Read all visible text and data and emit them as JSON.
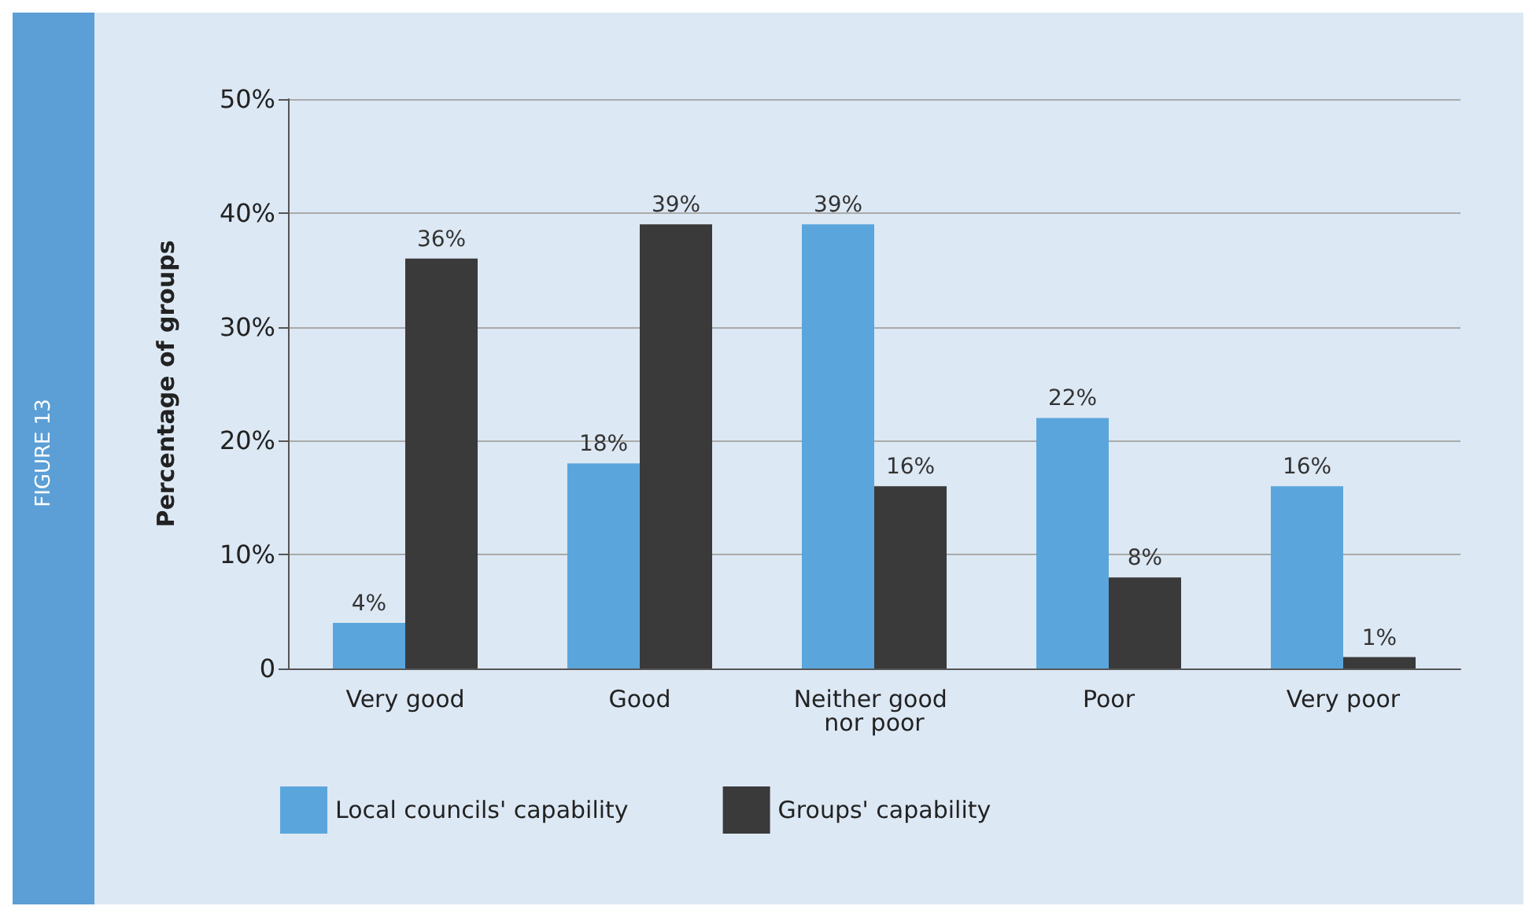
{
  "chart_data": {
    "type": "bar",
    "title": "FIGURE 13",
    "ylabel": "Percentage of groups",
    "categories": [
      "Very good",
      "Good",
      "Neither good nor poor",
      "Poor",
      "Very poor"
    ],
    "series": [
      {
        "name": "Local councils' capability",
        "color": "#5aa6dc",
        "values": [
          4,
          18,
          39,
          22,
          16
        ],
        "value_labels": [
          "4%",
          "18%",
          "39%",
          "22%",
          "16%"
        ]
      },
      {
        "name": "Groups' capability",
        "color": "#3a3a3a",
        "values": [
          36,
          39,
          16,
          8,
          1
        ],
        "value_labels": [
          "36%",
          "39%",
          "16%",
          "8%",
          "1%"
        ]
      }
    ],
    "ylim": [
      0,
      50
    ],
    "yticks": [
      {
        "value": 0,
        "label": "0"
      },
      {
        "value": 10,
        "label": "10%"
      },
      {
        "value": 20,
        "label": "20%"
      },
      {
        "value": 30,
        "label": "30%"
      },
      {
        "value": 40,
        "label": "40%"
      },
      {
        "value": 50,
        "label": "50%"
      }
    ],
    "grid": "y",
    "legend": "bottom left"
  }
}
